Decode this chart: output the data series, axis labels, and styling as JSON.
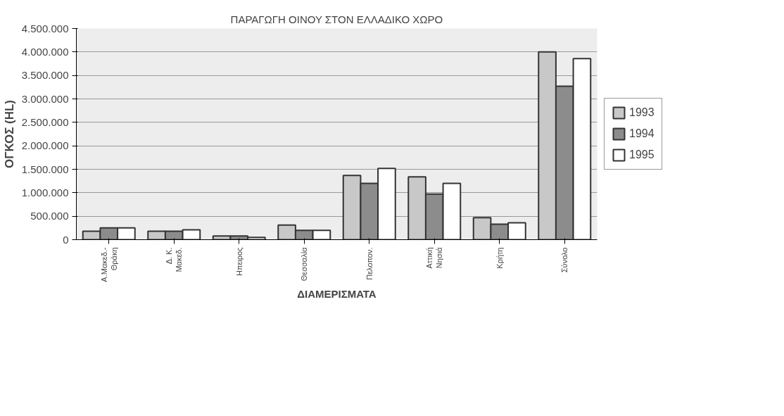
{
  "chart_data": {
    "type": "bar",
    "title": "ΠΑΡΑΓΩΓΗ ΟΙΝΟΥ ΣΤΟΝ ΕΛΛΑΔΙΚΟ ΧΩΡΟ",
    "xlabel": "ΔΙΑΜΕΡΙΣΜΑΤΑ",
    "ylabel": "ΟΓΚΟΣ (HL)",
    "categories": [
      "Α.Μακεδ.-\nΘράκη",
      "Δ. Κ.\nΜακεδ.",
      "Ηπειρος",
      "Θεσσαλία",
      "Πελοπον.",
      "Αττική\nΝησιά",
      "Κρήτη",
      "Σύνολο"
    ],
    "series": [
      {
        "name": "1993",
        "color": "#c8c8c8",
        "values": [
          180000,
          180000,
          80000,
          310000,
          1370000,
          1340000,
          470000,
          4000000
        ]
      },
      {
        "name": "1994",
        "color": "#8c8c8c",
        "values": [
          250000,
          180000,
          80000,
          200000,
          1200000,
          970000,
          330000,
          3270000
        ]
      },
      {
        "name": "1995",
        "color": "#ffffff",
        "values": [
          250000,
          210000,
          50000,
          200000,
          1520000,
          1200000,
          360000,
          3860000
        ]
      }
    ],
    "ylim": [
      0,
      4500000
    ],
    "yticks": [
      0,
      {
        "value": 500000,
        "label": "500.000"
      },
      {
        "value": 1000000,
        "label": "1.000.000"
      },
      {
        "value": 1500000,
        "label": "1.500.000"
      },
      {
        "value": 2000000,
        "label": "2.000.000"
      },
      {
        "value": 2500000,
        "label": "2.500.000"
      },
      {
        "value": 3000000,
        "label": "3.000.000"
      },
      {
        "value": 3500000,
        "label": "3.500.000"
      },
      {
        "value": 4000000,
        "label": "4.000.000"
      },
      {
        "value": 4500000,
        "label": "4.500.000"
      }
    ],
    "grid": "y",
    "legend": "right"
  }
}
